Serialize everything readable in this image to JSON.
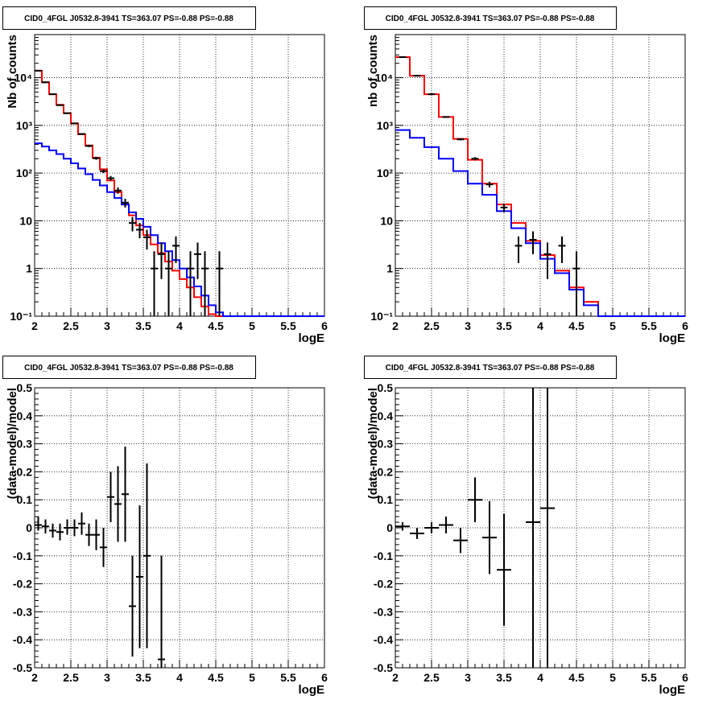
{
  "chart_data": [
    {
      "type": "step-histogram",
      "title": "CID0_4FGL J0532.8-3941 TS=363.07 PS=-0.88 PS=-0.88",
      "xlabel": "logE",
      "ylabel": "Nb of counts",
      "xlim": [
        2,
        6
      ],
      "ylim": [
        0.1,
        80000
      ],
      "log_y": true,
      "grid": true,
      "x_ticks": [
        2,
        2.5,
        3,
        3.5,
        4,
        4.5,
        5,
        5.5,
        6
      ],
      "x_tick_labels": [
        "2",
        "2.5",
        "3",
        "3.5",
        "4",
        "4.5",
        "5",
        "5.5",
        "6"
      ],
      "y_ticks": [
        0.1,
        1,
        10,
        100,
        1000,
        10000
      ],
      "y_tick_labels": [
        "10⁻¹",
        "1",
        "10",
        "10²",
        "10³",
        "10⁴"
      ],
      "bin_edges": [
        2.0,
        2.1,
        2.2,
        2.3,
        2.4,
        2.5,
        2.6,
        2.7,
        2.8,
        2.9,
        3.0,
        3.1,
        3.2,
        3.3,
        3.4,
        3.5,
        3.6,
        3.7,
        3.8,
        3.9,
        4.0,
        4.1,
        4.2,
        4.3,
        4.4,
        4.5,
        4.6,
        4.7,
        4.8,
        4.9,
        5.0,
        5.1,
        5.2,
        5.3,
        5.4,
        5.5,
        5.6,
        5.7,
        5.8,
        5.9,
        6.0
      ],
      "series": [
        {
          "color": "#ff0000",
          "values": [
            14000,
            8000,
            4500,
            2700,
            1800,
            1100,
            650,
            380,
            210,
            120,
            70,
            40,
            22,
            13,
            8,
            5,
            3.2,
            2.1,
            1.4,
            0.9,
            0.6,
            0.4,
            0.25,
            0.16,
            0.11,
            0.1,
            0.1,
            0.1,
            0.1,
            0.1,
            0.1,
            0.1,
            0.1,
            0.1,
            0.1,
            0.1,
            0.1,
            0.1,
            0.1,
            0.1
          ]
        },
        {
          "color": "#0000ff",
          "values": [
            420,
            360,
            300,
            250,
            200,
            160,
            125,
            95,
            72,
            55,
            40,
            30,
            22,
            15,
            11,
            7.5,
            5,
            3.4,
            2.3,
            1.5,
            1.0,
            0.65,
            0.42,
            0.27,
            0.17,
            0.12,
            0.1,
            0.1,
            0.1,
            0.1,
            0.1,
            0.1,
            0.1,
            0.1,
            0.1,
            0.1,
            0.1,
            0.1,
            0.1,
            0.1
          ]
        }
      ],
      "data_points": [
        {
          "x": 2.05,
          "y": 14000,
          "ylo": 13800,
          "yhi": 14200
        },
        {
          "x": 2.15,
          "y": 8000,
          "ylo": 7900,
          "yhi": 8100
        },
        {
          "x": 2.25,
          "y": 4500,
          "ylo": 4430,
          "yhi": 4570
        },
        {
          "x": 2.35,
          "y": 2650,
          "ylo": 2600,
          "yhi": 2700
        },
        {
          "x": 2.45,
          "y": 1800,
          "ylo": 1760,
          "yhi": 1840
        },
        {
          "x": 2.55,
          "y": 1100,
          "ylo": 1070,
          "yhi": 1130
        },
        {
          "x": 2.65,
          "y": 660,
          "ylo": 635,
          "yhi": 685
        },
        {
          "x": 2.75,
          "y": 370,
          "ylo": 350,
          "yhi": 390
        },
        {
          "x": 2.85,
          "y": 205,
          "ylo": 190,
          "yhi": 220
        },
        {
          "x": 2.95,
          "y": 110,
          "ylo": 100,
          "yhi": 120
        },
        {
          "x": 3.05,
          "y": 78,
          "ylo": 70,
          "yhi": 87
        },
        {
          "x": 3.15,
          "y": 43,
          "ylo": 37,
          "yhi": 50
        },
        {
          "x": 3.25,
          "y": 24,
          "ylo": 19,
          "yhi": 29
        },
        {
          "x": 3.35,
          "y": 9,
          "ylo": 6,
          "yhi": 12
        },
        {
          "x": 3.45,
          "y": 6.5,
          "ylo": 4.3,
          "yhi": 9
        },
        {
          "x": 3.55,
          "y": 4.5,
          "ylo": 2.5,
          "yhi": 6.5
        },
        {
          "x": 3.65,
          "y": 1,
          "ylo": 0.1,
          "yhi": 2.3
        },
        {
          "x": 3.75,
          "y": 2,
          "ylo": 0.6,
          "yhi": 3.5
        },
        {
          "x": 3.85,
          "y": 1,
          "ylo": 0.1,
          "yhi": 2.3
        },
        {
          "x": 3.95,
          "y": 3,
          "ylo": 1.3,
          "yhi": 4.7
        },
        {
          "x": 4.15,
          "y": 1,
          "ylo": 0.1,
          "yhi": 2.3
        },
        {
          "x": 4.25,
          "y": 2,
          "ylo": 0.6,
          "yhi": 3.5
        },
        {
          "x": 4.35,
          "y": 1,
          "ylo": 0.1,
          "yhi": 2.3
        },
        {
          "x": 4.55,
          "y": 1,
          "ylo": 0.1,
          "yhi": 2.3
        }
      ]
    },
    {
      "type": "step-histogram",
      "title": "CID0_4FGL J0532.8-3941 TS=363.07 PS=-0.88 PS=-0.88",
      "xlabel": "logE",
      "ylabel": "nb of counts",
      "xlim": [
        2,
        6
      ],
      "ylim": [
        0.1,
        80000
      ],
      "log_y": true,
      "grid": true,
      "x_ticks": [
        2,
        2.5,
        3,
        3.5,
        4,
        4.5,
        5,
        5.5,
        6
      ],
      "x_tick_labels": [
        "2",
        "2.5",
        "3",
        "3.5",
        "4",
        "4.5",
        "5",
        "5.5",
        "6"
      ],
      "y_ticks": [
        0.1,
        1,
        10,
        100,
        1000,
        10000
      ],
      "y_tick_labels": [
        "10⁻¹",
        "1",
        "10",
        "10²",
        "10³",
        "10⁴"
      ],
      "bin_edges": [
        2.0,
        2.2,
        2.4,
        2.6,
        2.8,
        3.0,
        3.2,
        3.4,
        3.6,
        3.8,
        4.0,
        4.2,
        4.4,
        4.6,
        4.8,
        5.0,
        5.2,
        5.4,
        5.6,
        5.8,
        6.0
      ],
      "series": [
        {
          "color": "#ff0000",
          "values": [
            27000,
            11000,
            4500,
            1500,
            520,
            190,
            60,
            22,
            9,
            3.8,
            1.9,
            0.9,
            0.4,
            0.2,
            0.1,
            0.1,
            0.1,
            0.1,
            0.1,
            0.1
          ]
        },
        {
          "color": "#0000ff",
          "values": [
            800,
            550,
            350,
            200,
            110,
            60,
            35,
            16,
            7,
            3.4,
            1.6,
            0.8,
            0.36,
            0.17,
            0.1,
            0.1,
            0.1,
            0.1,
            0.1,
            0.1
          ]
        }
      ],
      "data_points": [
        {
          "x": 2.1,
          "y": 27000,
          "ylo": 26700,
          "yhi": 27300
        },
        {
          "x": 2.3,
          "y": 11000,
          "ylo": 10800,
          "yhi": 11200
        },
        {
          "x": 2.5,
          "y": 4500,
          "ylo": 4430,
          "yhi": 4570
        },
        {
          "x": 2.7,
          "y": 1500,
          "ylo": 1460,
          "yhi": 1540
        },
        {
          "x": 2.9,
          "y": 510,
          "ylo": 485,
          "yhi": 535
        },
        {
          "x": 3.1,
          "y": 200,
          "ylo": 185,
          "yhi": 215
        },
        {
          "x": 3.3,
          "y": 58,
          "ylo": 50,
          "yhi": 66
        },
        {
          "x": 3.5,
          "y": 19,
          "ylo": 15,
          "yhi": 23
        },
        {
          "x": 3.7,
          "y": 3,
          "ylo": 1.3,
          "yhi": 4.7
        },
        {
          "x": 3.9,
          "y": 4,
          "ylo": 2,
          "yhi": 6
        },
        {
          "x": 4.1,
          "y": 2,
          "ylo": 0.6,
          "yhi": 3.5
        },
        {
          "x": 4.3,
          "y": 3,
          "ylo": 1.3,
          "yhi": 4.7
        },
        {
          "x": 4.5,
          "y": 1,
          "ylo": 0.1,
          "yhi": 2.3
        }
      ]
    },
    {
      "type": "scatter",
      "title": "CID0_4FGL J0532.8-3941 TS=363.07 PS=-0.88 PS=-0.88",
      "xlabel": "logE",
      "ylabel": "(data-model)/model",
      "xlim": [
        2,
        6
      ],
      "ylim": [
        -0.5,
        0.5
      ],
      "log_y": false,
      "grid": true,
      "x_ticks": [
        2,
        2.5,
        3,
        3.5,
        4,
        4.5,
        5,
        5.5,
        6
      ],
      "x_tick_labels": [
        "2",
        "2.5",
        "3",
        "3.5",
        "4",
        "4.5",
        "5",
        "5.5",
        "6"
      ],
      "y_ticks": [
        -0.5,
        -0.4,
        -0.3,
        -0.2,
        -0.1,
        0,
        0.1,
        0.2,
        0.3,
        0.4,
        0.5
      ],
      "y_tick_labels": [
        "-0.5",
        "-0.4",
        "-0.3",
        "-0.2",
        "-0.1",
        "0",
        "0.1",
        "0.2",
        "0.3",
        "0.4",
        "0.5"
      ],
      "data_points": [
        {
          "x": 2.05,
          "y": 0.01,
          "ylo": -0.01,
          "yhi": 0.04,
          "xerr": 0.05
        },
        {
          "x": 2.15,
          "y": 0.005,
          "ylo": -0.02,
          "yhi": 0.03,
          "xerr": 0.05
        },
        {
          "x": 2.25,
          "y": -0.01,
          "ylo": -0.035,
          "yhi": 0.015,
          "xerr": 0.05
        },
        {
          "x": 2.35,
          "y": -0.015,
          "ylo": -0.045,
          "yhi": 0.015,
          "xerr": 0.05
        },
        {
          "x": 2.45,
          "y": 0.0,
          "ylo": -0.025,
          "yhi": 0.03,
          "xerr": 0.05
        },
        {
          "x": 2.55,
          "y": 0.0,
          "ylo": -0.03,
          "yhi": 0.03,
          "xerr": 0.05
        },
        {
          "x": 2.65,
          "y": 0.015,
          "ylo": -0.025,
          "yhi": 0.055,
          "xerr": 0.05
        },
        {
          "x": 2.75,
          "y": -0.025,
          "ylo": -0.065,
          "yhi": 0.015,
          "xerr": 0.05
        },
        {
          "x": 2.85,
          "y": -0.025,
          "ylo": -0.08,
          "yhi": 0.03,
          "xerr": 0.05
        },
        {
          "x": 2.95,
          "y": -0.07,
          "ylo": -0.14,
          "yhi": 0.0,
          "xerr": 0.05
        },
        {
          "x": 3.05,
          "y": 0.11,
          "ylo": 0.02,
          "yhi": 0.2,
          "xerr": 0.05
        },
        {
          "x": 3.15,
          "y": 0.085,
          "ylo": -0.05,
          "yhi": 0.22,
          "xerr": 0.05
        },
        {
          "x": 3.25,
          "y": 0.12,
          "ylo": -0.05,
          "yhi": 0.29,
          "xerr": 0.05
        },
        {
          "x": 3.35,
          "y": -0.28,
          "ylo": -0.46,
          "yhi": -0.1,
          "xerr": 0.05
        },
        {
          "x": 3.45,
          "y": -0.175,
          "ylo": -0.43,
          "yhi": 0.08,
          "xerr": 0.05
        },
        {
          "x": 3.55,
          "y": -0.1,
          "ylo": -0.43,
          "yhi": 0.23,
          "xerr": 0.05
        },
        {
          "x": 3.75,
          "y": -0.47,
          "ylo": -0.5,
          "yhi": -0.1,
          "xerr": 0.05
        }
      ]
    },
    {
      "type": "scatter",
      "title": "CID0_4FGL J0532.8-3941 TS=363.07 PS=-0.88 PS=-0.88",
      "xlabel": "logE",
      "ylabel": "(data-model)/model",
      "xlim": [
        2,
        6
      ],
      "ylim": [
        -0.5,
        0.5
      ],
      "log_y": false,
      "grid": true,
      "x_ticks": [
        2,
        2.5,
        3,
        3.5,
        4,
        4.5,
        5,
        5.5,
        6
      ],
      "x_tick_labels": [
        "2",
        "2.5",
        "3",
        "3.5",
        "4",
        "4.5",
        "5",
        "5.5",
        "6"
      ],
      "y_ticks": [
        -0.5,
        -0.4,
        -0.3,
        -0.2,
        -0.1,
        0,
        0.1,
        0.2,
        0.3,
        0.4,
        0.5
      ],
      "y_tick_labels": [
        "-0.5",
        "-0.4",
        "-0.3",
        "-0.2",
        "-0.1",
        "0",
        "0.1",
        "0.2",
        "0.3",
        "0.4",
        "0.5"
      ],
      "data_points": [
        {
          "x": 2.1,
          "y": 0.005,
          "ylo": -0.01,
          "yhi": 0.02,
          "xerr": 0.1
        },
        {
          "x": 2.3,
          "y": -0.02,
          "ylo": -0.04,
          "yhi": 0.0,
          "xerr": 0.1
        },
        {
          "x": 2.5,
          "y": 0.0,
          "ylo": -0.02,
          "yhi": 0.02,
          "xerr": 0.1
        },
        {
          "x": 2.7,
          "y": 0.01,
          "ylo": -0.02,
          "yhi": 0.04,
          "xerr": 0.1
        },
        {
          "x": 2.9,
          "y": -0.045,
          "ylo": -0.09,
          "yhi": 0.0,
          "xerr": 0.1
        },
        {
          "x": 3.1,
          "y": 0.1,
          "ylo": 0.02,
          "yhi": 0.18,
          "xerr": 0.1
        },
        {
          "x": 3.3,
          "y": -0.035,
          "ylo": -0.165,
          "yhi": 0.095,
          "xerr": 0.1
        },
        {
          "x": 3.5,
          "y": -0.15,
          "ylo": -0.35,
          "yhi": 0.05,
          "xerr": 0.1
        },
        {
          "x": 3.9,
          "y": 0.02,
          "ylo": -0.5,
          "yhi": 0.5,
          "xerr": 0.1
        },
        {
          "x": 4.1,
          "y": 0.07,
          "ylo": -0.5,
          "yhi": 0.5,
          "xerr": 0.1
        }
      ]
    }
  ]
}
